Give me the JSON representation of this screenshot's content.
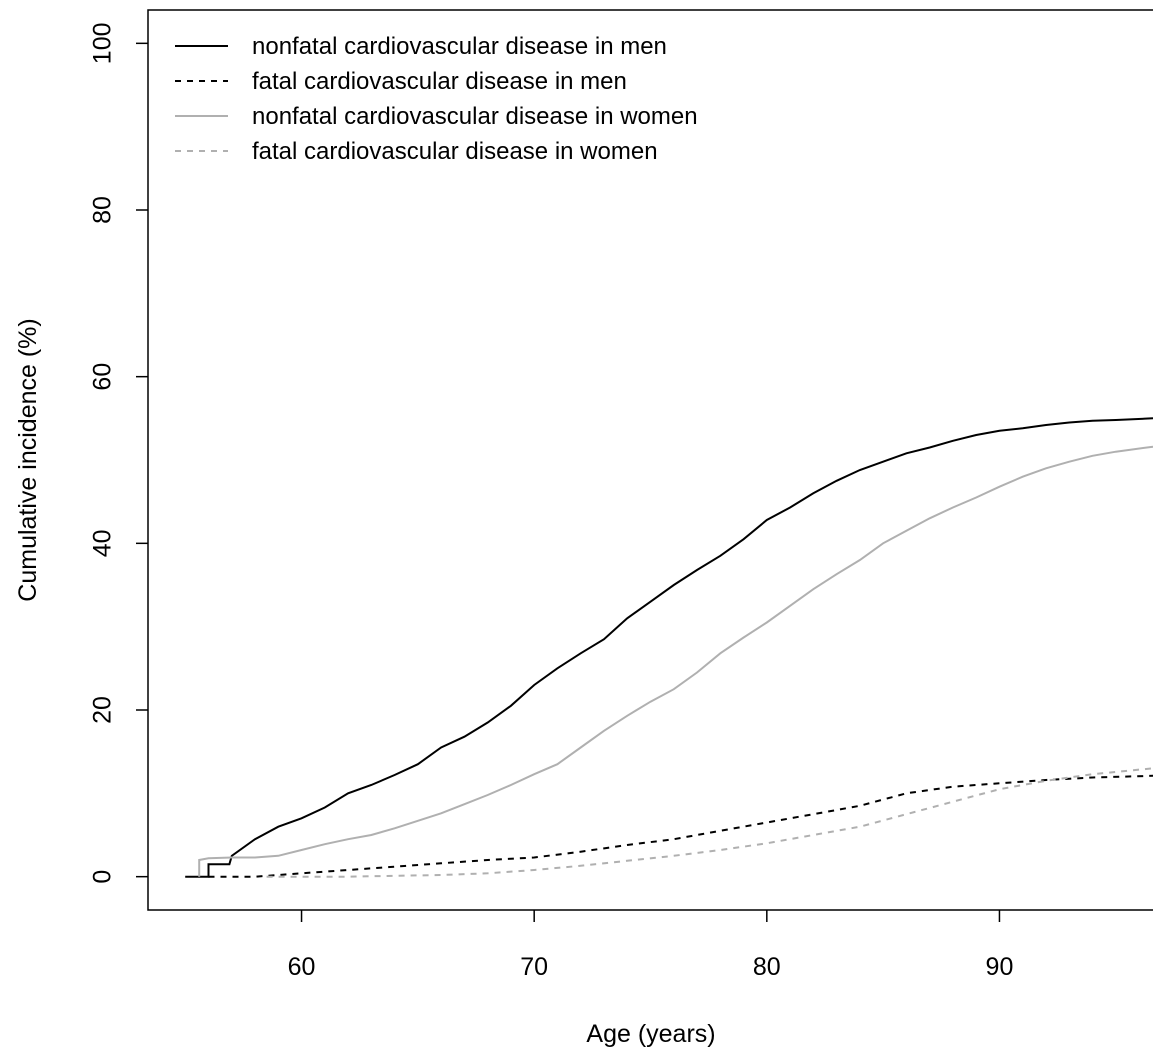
{
  "chart_data": {
    "type": "line",
    "title": "",
    "xlabel": "Age (years)",
    "ylabel": "Cumulative incidence (%)",
    "xlim": [
      53.4,
      96.6
    ],
    "ylim": [
      -4,
      104
    ],
    "xticks": [
      60,
      70,
      80,
      90
    ],
    "yticks": [
      0,
      20,
      40,
      60,
      80,
      100
    ],
    "grid": false,
    "legend_position": "top-left",
    "series": [
      {
        "name": "nonfatal cardiovascular disease in men",
        "color": "#000000",
        "dash": "solid",
        "points": [
          [
            55.0,
            0
          ],
          [
            56.0,
            0
          ],
          [
            56.0,
            1.5
          ],
          [
            56.9,
            1.5
          ],
          [
            57.0,
            2.5
          ],
          [
            58.0,
            4.5
          ],
          [
            59.0,
            6.0
          ],
          [
            60.0,
            7.0
          ],
          [
            61.0,
            8.3
          ],
          [
            62.0,
            10.0
          ],
          [
            63.0,
            11.0
          ],
          [
            64.0,
            12.2
          ],
          [
            65.0,
            13.5
          ],
          [
            66.0,
            15.5
          ],
          [
            67.0,
            16.8
          ],
          [
            68.0,
            18.5
          ],
          [
            69.0,
            20.5
          ],
          [
            70.0,
            23.0
          ],
          [
            71.0,
            25.0
          ],
          [
            72.0,
            26.8
          ],
          [
            73.0,
            28.5
          ],
          [
            74.0,
            31.0
          ],
          [
            75.0,
            33.0
          ],
          [
            76.0,
            35.0
          ],
          [
            77.0,
            36.8
          ],
          [
            78.0,
            38.5
          ],
          [
            79.0,
            40.5
          ],
          [
            80.0,
            42.8
          ],
          [
            81.0,
            44.3
          ],
          [
            82.0,
            46.0
          ],
          [
            83.0,
            47.5
          ],
          [
            84.0,
            48.8
          ],
          [
            85.0,
            49.8
          ],
          [
            86.0,
            50.8
          ],
          [
            87.0,
            51.5
          ],
          [
            88.0,
            52.3
          ],
          [
            89.0,
            53.0
          ],
          [
            90.0,
            53.5
          ],
          [
            91.0,
            53.8
          ],
          [
            92.0,
            54.2
          ],
          [
            93.0,
            54.5
          ],
          [
            94.0,
            54.7
          ],
          [
            95.0,
            54.8
          ],
          [
            96.6,
            55.0
          ]
        ]
      },
      {
        "name": "fatal cardiovascular disease in men",
        "color": "#000000",
        "dash": "dashed",
        "points": [
          [
            56.0,
            0
          ],
          [
            58.0,
            0
          ],
          [
            60.0,
            0.4
          ],
          [
            62.0,
            0.8
          ],
          [
            64.0,
            1.2
          ],
          [
            66.0,
            1.6
          ],
          [
            68.0,
            2.0
          ],
          [
            70.0,
            2.3
          ],
          [
            72.0,
            3.0
          ],
          [
            74.0,
            3.8
          ],
          [
            76.0,
            4.5
          ],
          [
            78.0,
            5.5
          ],
          [
            80.0,
            6.5
          ],
          [
            82.0,
            7.5
          ],
          [
            84.0,
            8.5
          ],
          [
            86.0,
            10.0
          ],
          [
            88.0,
            10.8
          ],
          [
            90.0,
            11.2
          ],
          [
            92.0,
            11.6
          ],
          [
            94.0,
            11.9
          ],
          [
            96.6,
            12.1
          ]
        ]
      },
      {
        "name": "nonfatal cardiovascular disease in women",
        "color": "#b0b0b0",
        "dash": "solid",
        "points": [
          [
            55.6,
            0
          ],
          [
            55.6,
            2.0
          ],
          [
            56.0,
            2.2
          ],
          [
            57.0,
            2.3
          ],
          [
            58.0,
            2.3
          ],
          [
            59.0,
            2.5
          ],
          [
            60.0,
            3.2
          ],
          [
            61.0,
            3.9
          ],
          [
            62.0,
            4.5
          ],
          [
            63.0,
            5.0
          ],
          [
            64.0,
            5.8
          ],
          [
            65.0,
            6.7
          ],
          [
            66.0,
            7.6
          ],
          [
            67.0,
            8.7
          ],
          [
            68.0,
            9.8
          ],
          [
            69.0,
            11.0
          ],
          [
            70.0,
            12.3
          ],
          [
            71.0,
            13.5
          ],
          [
            72.0,
            15.5
          ],
          [
            73.0,
            17.5
          ],
          [
            74.0,
            19.3
          ],
          [
            75.0,
            21.0
          ],
          [
            76.0,
            22.5
          ],
          [
            77.0,
            24.5
          ],
          [
            78.0,
            26.8
          ],
          [
            79.0,
            28.7
          ],
          [
            80.0,
            30.5
          ],
          [
            81.0,
            32.5
          ],
          [
            82.0,
            34.5
          ],
          [
            83.0,
            36.3
          ],
          [
            84.0,
            38.0
          ],
          [
            85.0,
            40.0
          ],
          [
            86.0,
            41.5
          ],
          [
            87.0,
            43.0
          ],
          [
            88.0,
            44.3
          ],
          [
            89.0,
            45.5
          ],
          [
            90.0,
            46.8
          ],
          [
            91.0,
            48.0
          ],
          [
            92.0,
            49.0
          ],
          [
            93.0,
            49.8
          ],
          [
            94.0,
            50.5
          ],
          [
            95.0,
            51.0
          ],
          [
            96.6,
            51.6
          ]
        ]
      },
      {
        "name": "fatal cardiovascular disease in women",
        "color": "#b0b0b0",
        "dash": "dashed",
        "points": [
          [
            58.5,
            0
          ],
          [
            62.0,
            0
          ],
          [
            64.0,
            0.1
          ],
          [
            66.0,
            0.2
          ],
          [
            68.0,
            0.4
          ],
          [
            70.0,
            0.8
          ],
          [
            72.0,
            1.3
          ],
          [
            74.0,
            1.9
          ],
          [
            76.0,
            2.5
          ],
          [
            78.0,
            3.2
          ],
          [
            80.0,
            4.0
          ],
          [
            82.0,
            5.0
          ],
          [
            84.0,
            6.0
          ],
          [
            86.0,
            7.5
          ],
          [
            88.0,
            9.0
          ],
          [
            90.0,
            10.5
          ],
          [
            92.0,
            11.5
          ],
          [
            94.0,
            12.3
          ],
          [
            96.6,
            13.0
          ]
        ]
      }
    ]
  }
}
